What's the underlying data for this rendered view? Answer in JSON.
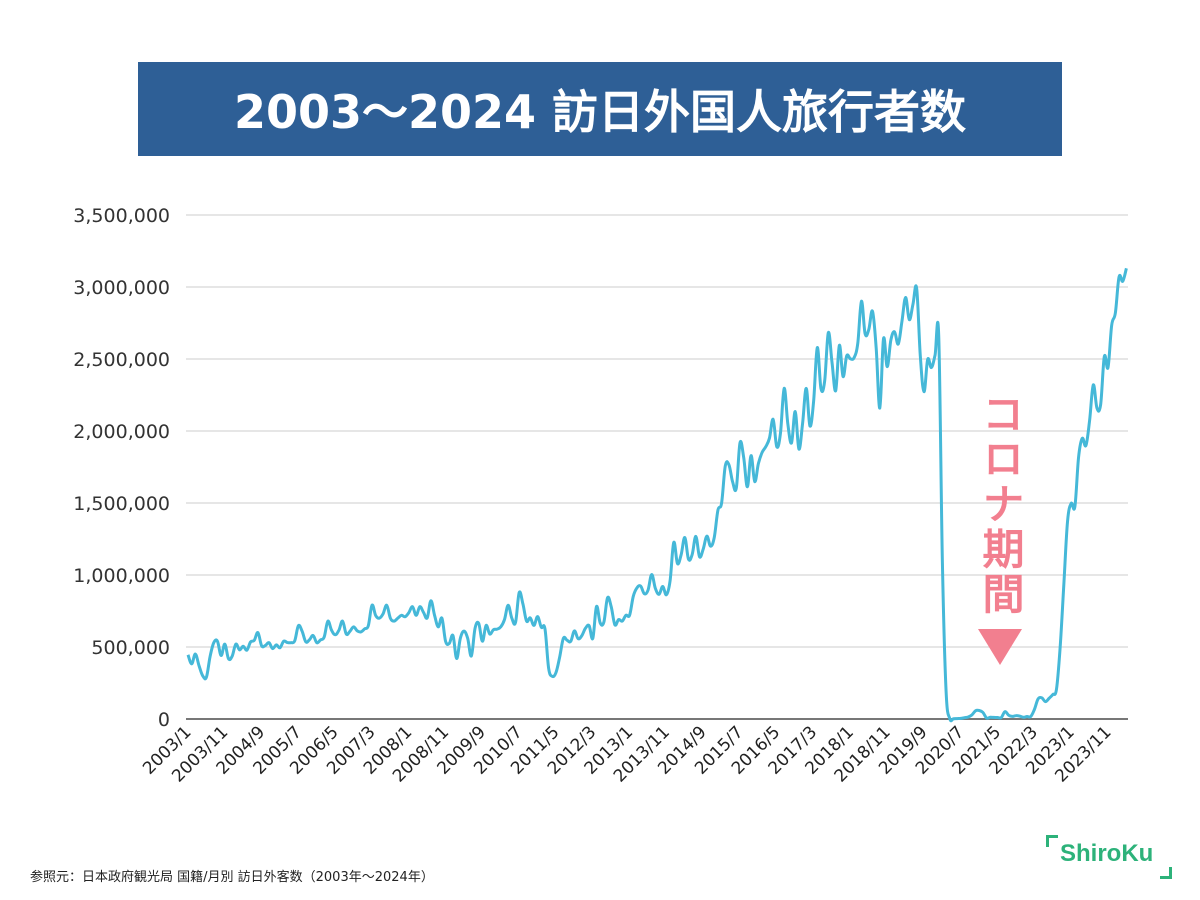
{
  "title": "2003〜2024 訪日外国人旅行者数",
  "annotation": {
    "text": "コロナ期間",
    "color": "#f27f8f",
    "icon": "down-triangle-icon"
  },
  "source": "参照元：日本政府観光局 国籍/月別 訪日外客数（2003年〜2024年）",
  "logo": "ShiroKu",
  "colors": {
    "title_bg": "#2e5f96",
    "line": "#45b8d8",
    "logo": "#2db27a"
  },
  "chart_data": {
    "type": "line",
    "title": "",
    "xlabel": "",
    "ylabel": "",
    "x_range": [
      "2003/1",
      "2024/4"
    ],
    "x_frequency": "monthly",
    "ylim": [
      0,
      3500000
    ],
    "y_ticks": [
      "0",
      "500,000",
      "1,000,000",
      "1,500,000",
      "2,000,000",
      "2,500,000",
      "3,000,000",
      "3,500,000"
    ],
    "y_tick_values": [
      0,
      500000,
      1000000,
      1500000,
      2000000,
      2500000,
      3000000,
      3500000
    ],
    "x_ticks": [
      "2003/1",
      "2003/11",
      "2004/9",
      "2005/7",
      "2006/5",
      "2007/3",
      "2008/1",
      "2008/11",
      "2009/9",
      "2010/7",
      "2011/5",
      "2012/3",
      "2013/1",
      "2013/11",
      "2014/9",
      "2015/7",
      "2016/5",
      "2017/3",
      "2018/1",
      "2018/11",
      "2019/9",
      "2020/7",
      "2021/5",
      "2022/3",
      "2023/1",
      "2023/11"
    ],
    "grid": "horizontal",
    "legend": "none",
    "series": [
      {
        "values": [
          446000,
          383000,
          451000,
          370000,
          300000,
          290000,
          434000,
          530000,
          540000,
          441000,
          520000,
          419000,
          436000,
          520000,
          480000,
          505000,
          478000,
          535000,
          546000,
          600000,
          509000,
          510000,
          530000,
          489000,
          515000,
          495000,
          540000,
          531000,
          530000,
          543000,
          648000,
          610000,
          536000,
          550000,
          580000,
          530000,
          549000,
          569000,
          679000,
          617000,
          585000,
          616000,
          680000,
          590000,
          609000,
          640000,
          612000,
          605000,
          626000,
          648000,
          790000,
          719000,
          700000,
          730000,
          790000,
          700000,
          680000,
          700000,
          720000,
          710000,
          738000,
          780000,
          720000,
          780000,
          740000,
          702000,
          821000,
          720000,
          640000,
          700000,
          539000,
          525000,
          580000,
          420000,
          560000,
          610000,
          560000,
          438000,
          630000,
          664000,
          540000,
          650000,
          590000,
          620000,
          624000,
          640000,
          690000,
          790000,
          700000,
          670000,
          878000,
          800000,
          680000,
          702000,
          650000,
          711000,
          637000,
          627000,
          352000,
          296000,
          323000,
          430000,
          560000,
          547000,
          539000,
          612000,
          558000,
          578000,
          630000,
          648000,
          560000,
          781000,
          668000,
          672000,
          842000,
          780000,
          654000,
          690000,
          680000,
          720000,
          721000,
          852000,
          911000,
          923000,
          870000,
          894000,
          1003000,
          907000,
          866000,
          920000,
          863000,
          960000,
          1226000,
          1080000,
          1140000,
          1260000,
          1110000,
          1142000,
          1268000,
          1127000,
          1180000,
          1270000,
          1200000,
          1260000,
          1450000,
          1500000,
          1758000,
          1765000,
          1646000,
          1604000,
          1918000,
          1817000,
          1613000,
          1829000,
          1649000,
          1774000,
          1851000,
          1891000,
          1950000,
          2081000,
          1890000,
          1986000,
          2296000,
          2049000,
          1917000,
          2135000,
          1875000,
          2051000,
          2296000,
          2035000,
          2205000,
          2579000,
          2295000,
          2346000,
          2683000,
          2477000,
          2280000,
          2595000,
          2378000,
          2522000,
          2501000,
          2509000,
          2608000,
          2901000,
          2675000,
          2705000,
          2832000,
          2578000,
          2159000,
          2641000,
          2447000,
          2632000,
          2689000,
          2604000,
          2760000,
          2927000,
          2773000,
          2880000,
          2991000,
          2520000,
          2273000,
          2497000,
          2441000,
          2526000,
          2661000,
          1085000,
          194000,
          3000,
          2000,
          3000,
          4000,
          9000,
          14000,
          28000,
          57000,
          59000,
          46000,
          7000,
          12000,
          11000,
          10000,
          10000,
          51000,
          26000,
          18000,
          23000,
          20000,
          12000,
          17000,
          17000,
          66000,
          139000,
          147000,
          121000,
          144000,
          170000,
          207000,
          499000,
          935000,
          1371000,
          1497000,
          1475000,
          1817000,
          1949000,
          1899000,
          2073000,
          2320000,
          2159000,
          2183000,
          2517000,
          2441000,
          2734000,
          2820000,
          3070000,
          3040000,
          3130000
        ]
      }
    ]
  }
}
